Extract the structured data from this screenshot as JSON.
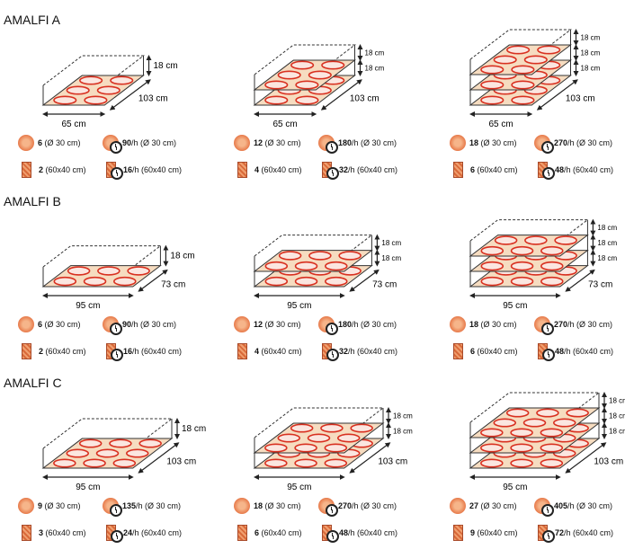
{
  "sections": [
    {
      "title": "AMALFI A",
      "width_cm": 65,
      "depth_cm": 103,
      "pizza_grid": [
        2,
        3
      ],
      "units": [
        {
          "levels": 1,
          "width": "65 cm",
          "depth": "103 cm",
          "heights": [
            "18 cm"
          ],
          "pizza": "6",
          "pizza_unit": "(Ø 30 cm)",
          "pizza_h": "90",
          "pizza_h_unit": "/h (Ø 30 cm)",
          "tray": "2",
          "tray_unit": "(60x40 cm)",
          "tray_h": "16",
          "tray_h_unit": "/h (60x40 cm)"
        },
        {
          "levels": 2,
          "width": "65 cm",
          "depth": "103 cm",
          "heights": [
            "18 cm",
            "18 cm"
          ],
          "pizza": "12",
          "pizza_unit": "(Ø 30 cm)",
          "pizza_h": "180",
          "pizza_h_unit": "/h (Ø 30 cm)",
          "tray": "4",
          "tray_unit": "(60x40 cm)",
          "tray_h": "32",
          "tray_h_unit": "/h (60x40 cm)"
        },
        {
          "levels": 3,
          "width": "65 cm",
          "depth": "103 cm",
          "heights": [
            "18 cm",
            "18 cm",
            "18 cm"
          ],
          "pizza": "18",
          "pizza_unit": "(Ø 30 cm)",
          "pizza_h": "270",
          "pizza_h_unit": "/h (Ø 30 cm)",
          "tray": "6",
          "tray_unit": "(60x40 cm)",
          "tray_h": "48",
          "tray_h_unit": "/h (60x40 cm)"
        }
      ]
    },
    {
      "title": "AMALFI B",
      "width_cm": 95,
      "depth_cm": 73,
      "pizza_grid": [
        3,
        2
      ],
      "units": [
        {
          "levels": 1,
          "width": "95 cm",
          "depth": "73 cm",
          "heights": [
            "18 cm"
          ],
          "pizza": "6",
          "pizza_unit": "(Ø 30 cm)",
          "pizza_h": "90",
          "pizza_h_unit": "/h (Ø 30 cm)",
          "tray": "2",
          "tray_unit": "(60x40 cm)",
          "tray_h": "16",
          "tray_h_unit": "/h (60x40 cm)"
        },
        {
          "levels": 2,
          "width": "95 cm",
          "depth": "73 cm",
          "heights": [
            "18 cm",
            "18 cm"
          ],
          "pizza": "12",
          "pizza_unit": "(Ø 30 cm)",
          "pizza_h": "180",
          "pizza_h_unit": "/h (Ø 30 cm)",
          "tray": "4",
          "tray_unit": "(60x40 cm)",
          "tray_h": "32",
          "tray_h_unit": "/h (60x40 cm)"
        },
        {
          "levels": 3,
          "width": "95 cm",
          "depth": "73 cm",
          "heights": [
            "18 cm",
            "18 cm",
            "18 cm"
          ],
          "pizza": "18",
          "pizza_unit": "(Ø 30 cm)",
          "pizza_h": "270",
          "pizza_h_unit": "/h (Ø 30 cm)",
          "tray": "6",
          "tray_unit": "(60x40 cm)",
          "tray_h": "48",
          "tray_h_unit": "/h (60x40 cm)"
        }
      ]
    },
    {
      "title": "AMALFI C",
      "width_cm": 95,
      "depth_cm": 103,
      "pizza_grid": [
        3,
        3
      ],
      "units": [
        {
          "levels": 1,
          "width": "95 cm",
          "depth": "103 cm",
          "heights": [
            "18 cm"
          ],
          "pizza": "9",
          "pizza_unit": "(Ø 30 cm)",
          "pizza_h": "135",
          "pizza_h_unit": "/h (Ø 30 cm)",
          "tray": "3",
          "tray_unit": "(60x40 cm)",
          "tray_h": "24",
          "tray_h_unit": "/h (60x40 cm)"
        },
        {
          "levels": 2,
          "width": "95 cm",
          "depth": "103 cm",
          "heights": [
            "18 cm",
            "18 cm"
          ],
          "pizza": "18",
          "pizza_unit": "(Ø 30 cm)",
          "pizza_h": "270",
          "pizza_h_unit": "/h (Ø 30 cm)",
          "tray": "6",
          "tray_unit": "(60x40 cm)",
          "tray_h": "48",
          "tray_h_unit": "/h (60x40 cm)"
        },
        {
          "levels": 3,
          "width": "95 cm",
          "depth": "103 cm",
          "heights": [
            "18 cm",
            "18 cm",
            "18 cm"
          ],
          "pizza": "27",
          "pizza_unit": "(Ø 30 cm)",
          "pizza_h": "405",
          "pizza_h_unit": "/h (Ø 30 cm)",
          "tray": "9",
          "tray_unit": "(60x40 cm)",
          "tray_h": "72",
          "tray_h_unit": "/h (60x40 cm)"
        }
      ]
    }
  ]
}
